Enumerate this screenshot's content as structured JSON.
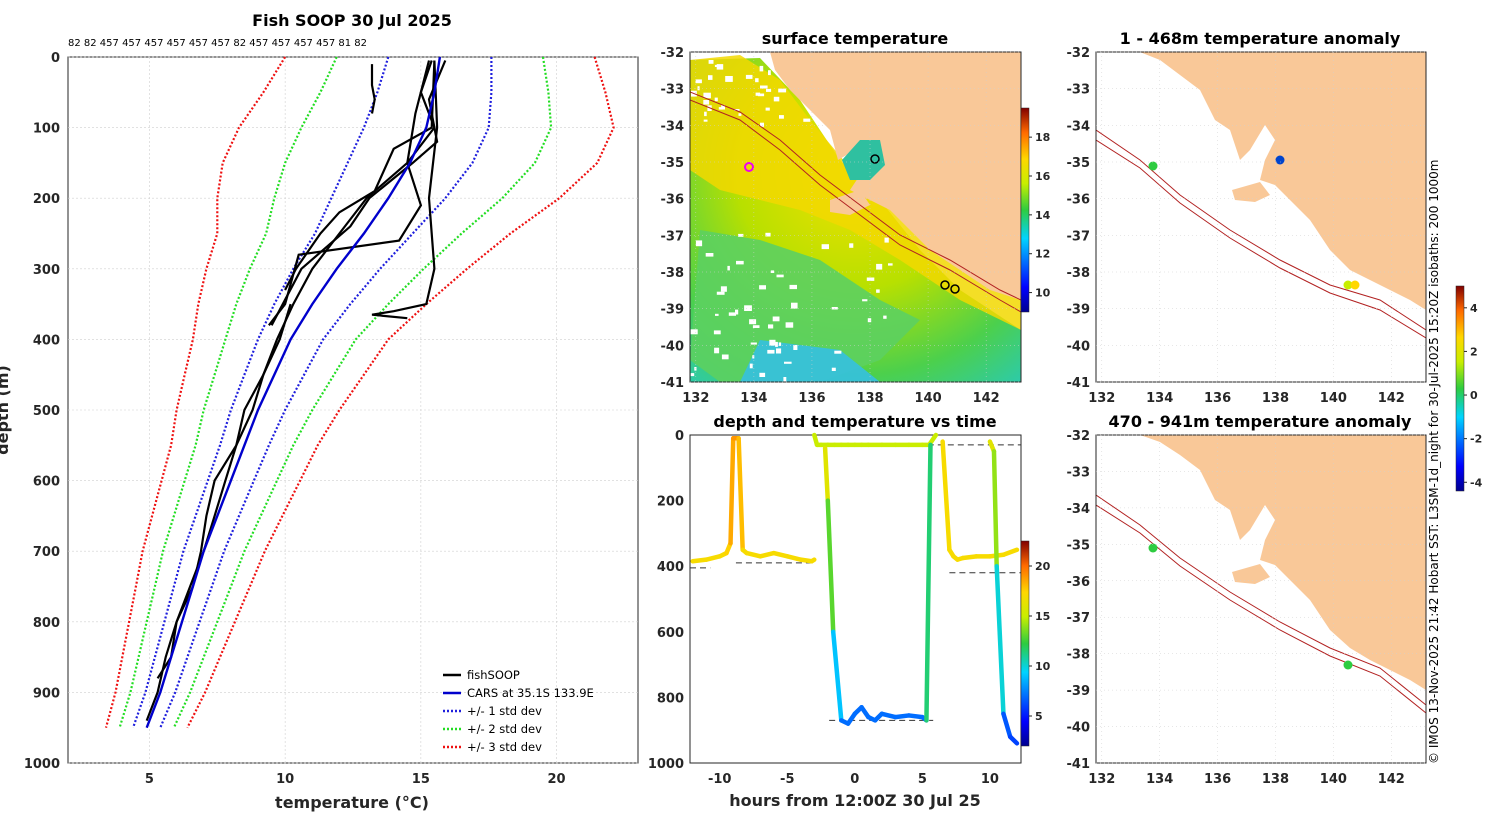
{
  "colors": {
    "land": "#f9c898",
    "shelf": "#b22222",
    "cars": "#0000cc",
    "std1": "#1f1fdd",
    "std2": "#22dd22",
    "std3": "#ee1111",
    "fish": "#000000"
  },
  "profile": {
    "title": "Fish SOOP 30 Jul 2025",
    "counts": "82 82 457 457 457 457 457 457 82 457 457 457 457 81 82",
    "xlabel": "temperature (°C)",
    "ylabel": "depth (m)",
    "xticks": [
      5,
      10,
      15,
      20
    ],
    "yticks": [
      0,
      100,
      200,
      300,
      400,
      500,
      600,
      700,
      800,
      900,
      1000
    ],
    "xlim": [
      2,
      23
    ],
    "ylim": [
      1000,
      0
    ],
    "legend": [
      "fishSOOP",
      "CARS at 35.1S 133.9E",
      "+/- 1 std dev",
      "+/- 2 std dev",
      "+/- 3 std dev"
    ],
    "cars_depth": [
      0,
      50,
      100,
      150,
      200,
      250,
      300,
      350,
      400,
      450,
      500,
      550,
      600,
      650,
      700,
      750,
      800,
      850,
      900,
      950
    ],
    "cars_temp": [
      15.7,
      15.5,
      15.2,
      14.6,
      13.8,
      12.9,
      11.9,
      11.0,
      10.2,
      9.6,
      9.0,
      8.5,
      8.0,
      7.5,
      7.0,
      6.6,
      6.2,
      5.8,
      5.4,
      4.9
    ],
    "std_sd": [
      1.9,
      2.1,
      2.3,
      2.3,
      2.1,
      1.8,
      1.6,
      1.4,
      1.2,
      1.1,
      1.0,
      0.9,
      0.85,
      0.8,
      0.75,
      0.7,
      0.65,
      0.6,
      0.55,
      0.5
    ],
    "fish_profiles": [
      {
        "depth": [
          5,
          80,
          150,
          210,
          260,
          280,
          350,
          380
        ],
        "temp": [
          15.3,
          14.8,
          14.5,
          15.0,
          14.2,
          10.5,
          10.0,
          9.4
        ]
      },
      {
        "depth": [
          5,
          100,
          130,
          190,
          220,
          250,
          300,
          330
        ],
        "temp": [
          15.5,
          15.4,
          14.0,
          13.3,
          12.0,
          11.3,
          10.4,
          10.0
        ]
      },
      {
        "depth": [
          5,
          60,
          120,
          150,
          200,
          240,
          300,
          380
        ],
        "temp": [
          15.9,
          15.3,
          15.6,
          14.7,
          13.1,
          12.4,
          10.6,
          9.5
        ]
      },
      {
        "depth": [
          5,
          100,
          200,
          300,
          350,
          360,
          365,
          370
        ],
        "temp": [
          15.5,
          15.6,
          15.3,
          15.5,
          15.2,
          14.0,
          13.2,
          14.5
        ]
      },
      {
        "depth": [
          10,
          40,
          60,
          80
        ],
        "temp": [
          13.2,
          13.2,
          13.3,
          13.2
        ]
      },
      {
        "depth": [
          5,
          50,
          100,
          150,
          200,
          250,
          300,
          350,
          400,
          450,
          500,
          550,
          600,
          650,
          700,
          750,
          800,
          850,
          900,
          940
        ],
        "temp": [
          15.4,
          15.0,
          15.5,
          14.5,
          13.0,
          12.0,
          11.0,
          10.3,
          9.7,
          9.2,
          8.5,
          8.2,
          7.8,
          7.4,
          7.0,
          6.5,
          6.0,
          5.6,
          5.3,
          4.9
        ]
      },
      {
        "depth": [
          350,
          400,
          450,
          500,
          550,
          600,
          650,
          700,
          750,
          800,
          850,
          880
        ],
        "temp": [
          10.2,
          9.8,
          9.2,
          8.8,
          8.2,
          7.4,
          7.1,
          6.9,
          6.6,
          6.0,
          5.8,
          5.3
        ]
      }
    ]
  },
  "sst": {
    "title": "surface temperature",
    "xticks": [
      132,
      134,
      136,
      138,
      140,
      142
    ],
    "yticks": [
      -32,
      -33,
      -34,
      -35,
      -36,
      -37,
      -38,
      -39,
      -40,
      -41
    ],
    "cbar_ticks": [
      10,
      12,
      14,
      16,
      18
    ],
    "cbar_range": [
      9,
      19.5
    ]
  },
  "timeplot": {
    "title": "depth and temperature vs time",
    "xlabel": "hours from 12:00Z 30 Jul 25",
    "xticks": [
      -10,
      -5,
      0,
      5,
      10
    ],
    "yticks": [
      0,
      200,
      400,
      600,
      800,
      1000
    ],
    "xlim": [
      -12.2,
      12.3
    ],
    "ylim": [
      1000,
      0
    ],
    "cbar_ticks": [
      5,
      10,
      15,
      20
    ],
    "cbar_range": [
      2,
      22.5
    ],
    "segments": [
      {
        "t": [
          -12,
          -11,
          -10,
          -9.5,
          -9.2,
          -9,
          -8.6,
          -8.3,
          -8,
          -7,
          -6,
          -5,
          -4,
          -3.2,
          -3
        ],
        "d": [
          385,
          380,
          370,
          360,
          330,
          10,
          10,
          350,
          360,
          370,
          360,
          370,
          380,
          385,
          380
        ],
        "temp": [
          17,
          17,
          17,
          17,
          18,
          19,
          19,
          17,
          17,
          17,
          17,
          17,
          17,
          17,
          17
        ]
      },
      {
        "t": [
          -3,
          -2.8,
          -2.5,
          -2,
          -1.5,
          -1,
          -0.5,
          0,
          0.5,
          1,
          2,
          3,
          4,
          5,
          5.5,
          6
        ],
        "d": [
          0,
          30,
          30,
          30,
          30,
          30,
          30,
          30,
          30,
          30,
          30,
          30,
          30,
          30,
          30,
          0
        ],
        "temp": [
          15,
          15,
          15,
          15,
          15,
          15,
          15,
          15,
          15,
          15,
          15,
          15,
          15,
          15,
          15,
          15
        ]
      },
      {
        "t": [
          -2.2,
          -2,
          -1.6,
          -1,
          -0.5,
          0,
          0.5,
          1,
          1.5,
          2,
          3,
          4,
          5,
          5.3,
          5.6
        ],
        "d": [
          40,
          200,
          600,
          870,
          880,
          850,
          830,
          860,
          870,
          850,
          860,
          855,
          860,
          870,
          30
        ],
        "temp": [
          17,
          15,
          11,
          7,
          7,
          7,
          7,
          7,
          7,
          7,
          7,
          7,
          7,
          7,
          16
        ]
      },
      {
        "t": [
          6.5,
          7,
          7.3,
          7.6,
          8,
          9,
          10,
          11,
          12
        ],
        "d": [
          20,
          350,
          370,
          380,
          375,
          370,
          370,
          365,
          350
        ],
        "temp": [
          17,
          17,
          17,
          17,
          17,
          17,
          17,
          17,
          17
        ]
      },
      {
        "t": [
          10,
          10.3,
          10.5,
          11,
          11.5,
          12
        ],
        "d": [
          20,
          50,
          400,
          850,
          920,
          940
        ],
        "temp": [
          17,
          15,
          13,
          7,
          6,
          6
        ]
      }
    ],
    "dashes": [
      {
        "t": [
          -12.2,
          -10.7
        ],
        "d": 405
      },
      {
        "t": [
          -8.8,
          -2.9
        ],
        "d": 390
      },
      {
        "t": [
          -1.9,
          5.8
        ],
        "d": 870
      },
      {
        "t": [
          7,
          12.3
        ],
        "d": 420
      },
      {
        "t": [
          -2,
          12.3
        ],
        "d": 30
      }
    ]
  },
  "anom_top": {
    "title": "1 - 468m temperature anomaly",
    "xticks": [
      132,
      134,
      136,
      138,
      140,
      142
    ],
    "yticks": [
      -32,
      -33,
      -34,
      -35,
      -36,
      -37,
      -38,
      -39,
      -40,
      -41
    ],
    "cbar_ticks": [
      -4,
      -2,
      0,
      2,
      4
    ],
    "cbar_range": [
      -4.4,
      5
    ]
  },
  "anom_bottom": {
    "title": "470 - 941m temperature anomaly",
    "xticks": [
      132,
      134,
      136,
      138,
      140,
      142
    ],
    "yticks": [
      -32,
      -33,
      -34,
      -35,
      -36,
      -37,
      -38,
      -39,
      -40,
      -41
    ]
  },
  "footnote": "© IMOS 13-Nov-2025 21:42 Hobart SST: L3SM-1d_night for 30-Jul-2025 15:20Z isobaths: 200  1000m"
}
